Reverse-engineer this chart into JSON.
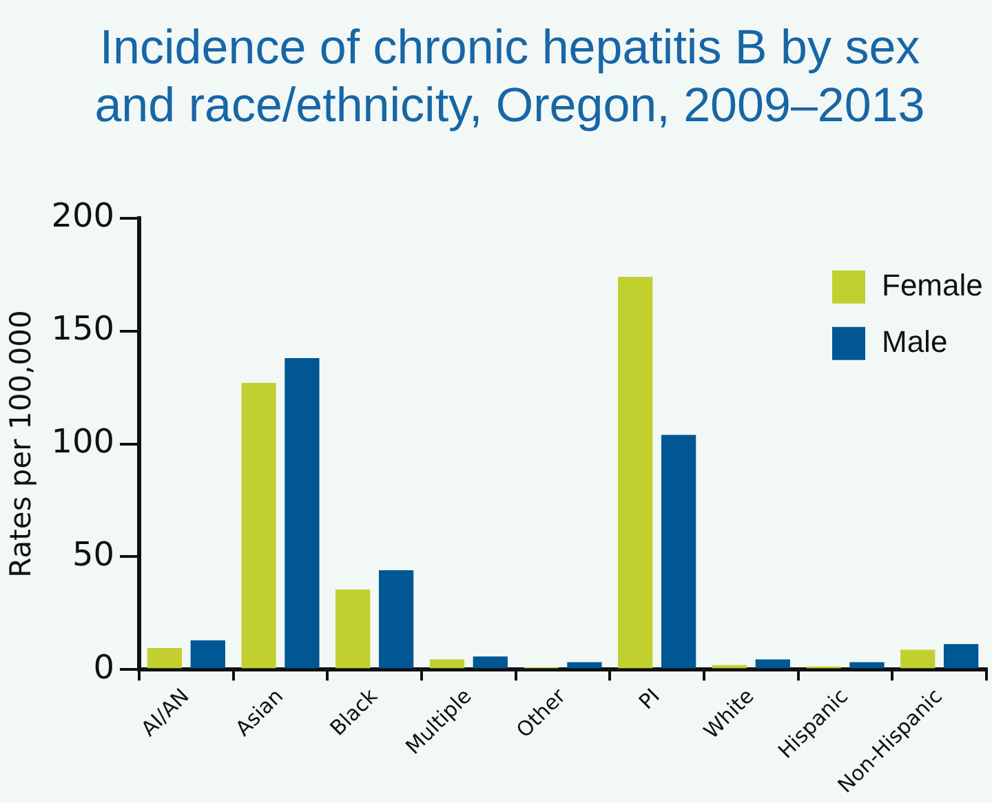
{
  "chart_data": {
    "type": "bar",
    "title": "Incidence of chronic hepatitis B by sex and race/ethnicity, Oregon, 2009–2013",
    "ylabel": "Rates per 100,000",
    "categories": [
      "AI/AN",
      "Asian",
      "Black",
      "Multiple",
      "Other",
      "PI",
      "White",
      "Hispanic",
      "Non-Hispanic"
    ],
    "series": [
      {
        "name": "Female",
        "color": "#c1d02f",
        "values": [
          9.5,
          127,
          35.5,
          4.5,
          1,
          174,
          2,
          1.4,
          8.8
        ]
      },
      {
        "name": "Male",
        "color": "#015694",
        "values": [
          13,
          138,
          44,
          5.8,
          3.3,
          104,
          4.5,
          3.3,
          11.3
        ]
      }
    ],
    "ylim": [
      0,
      200
    ],
    "yticks": [
      0,
      50,
      100,
      150,
      200
    ],
    "grid": false,
    "legend": "top right"
  }
}
